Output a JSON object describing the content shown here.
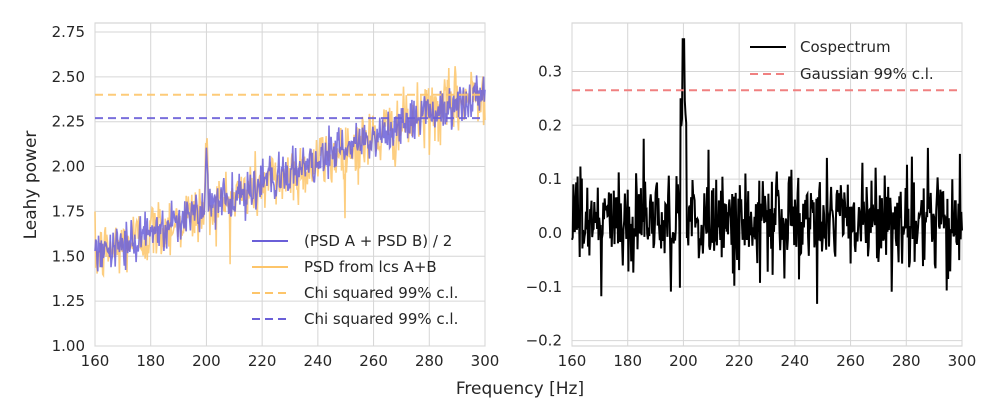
{
  "xlabel": "Frequency [Hz]",
  "chart_data": [
    {
      "type": "line",
      "title": "",
      "xlabel": "",
      "ylabel": "Leahy power",
      "xlim": [
        160,
        300
      ],
      "ylim": [
        1.0,
        2.8
      ],
      "xticks": [
        "160",
        "180",
        "200",
        "220",
        "240",
        "260",
        "280",
        "300"
      ],
      "yticks": [
        "1.00",
        "1.25",
        "1.50",
        "1.75",
        "2.00",
        "2.25",
        "2.50",
        "2.75"
      ],
      "grid": true,
      "legend_position": "lower-right",
      "model": {
        "baseline_at_160": 1.5,
        "slope_per_hz": 0.00657,
        "peak_center_hz": 200,
        "peak_height": 0.3
      },
      "series": [
        {
          "name": "(PSD A + PSD B) / 2",
          "color": "#6a5fd8",
          "style": "solid",
          "noise_amplitude": 0.06
        },
        {
          "name": "PSD from lcs A+B",
          "color": "#fdc56a",
          "style": "solid",
          "noise_amplitude": 0.09
        },
        {
          "name": "Chi squared 99% c.l.",
          "color": "#fdc56a",
          "style": "dashed",
          "y": 2.4
        },
        {
          "name": "Chi squared 99% c.l.",
          "color": "#6a5fd8",
          "style": "dashed",
          "y": 2.27
        }
      ]
    },
    {
      "type": "line",
      "title": "",
      "xlabel": "",
      "ylabel": "",
      "xlim": [
        160,
        300
      ],
      "ylim": [
        -0.21,
        0.39
      ],
      "xticks": [
        "160",
        "180",
        "200",
        "220",
        "240",
        "260",
        "280",
        "300"
      ],
      "yticks": [
        "−0.2",
        "−0.1",
        "0.0",
        "0.1",
        "0.2",
        "0.3"
      ],
      "grid": true,
      "legend_position": "top-right",
      "series": [
        {
          "name": "Cospectrum",
          "color": "#000000",
          "style": "solid",
          "mean": 0.02,
          "noise_sd": 0.05,
          "peak_hz": 200,
          "peak_value": 0.36
        },
        {
          "name": "Gaussian 99% c.l.",
          "color": "#f08080",
          "style": "dashed",
          "y": 0.265
        }
      ]
    }
  ]
}
